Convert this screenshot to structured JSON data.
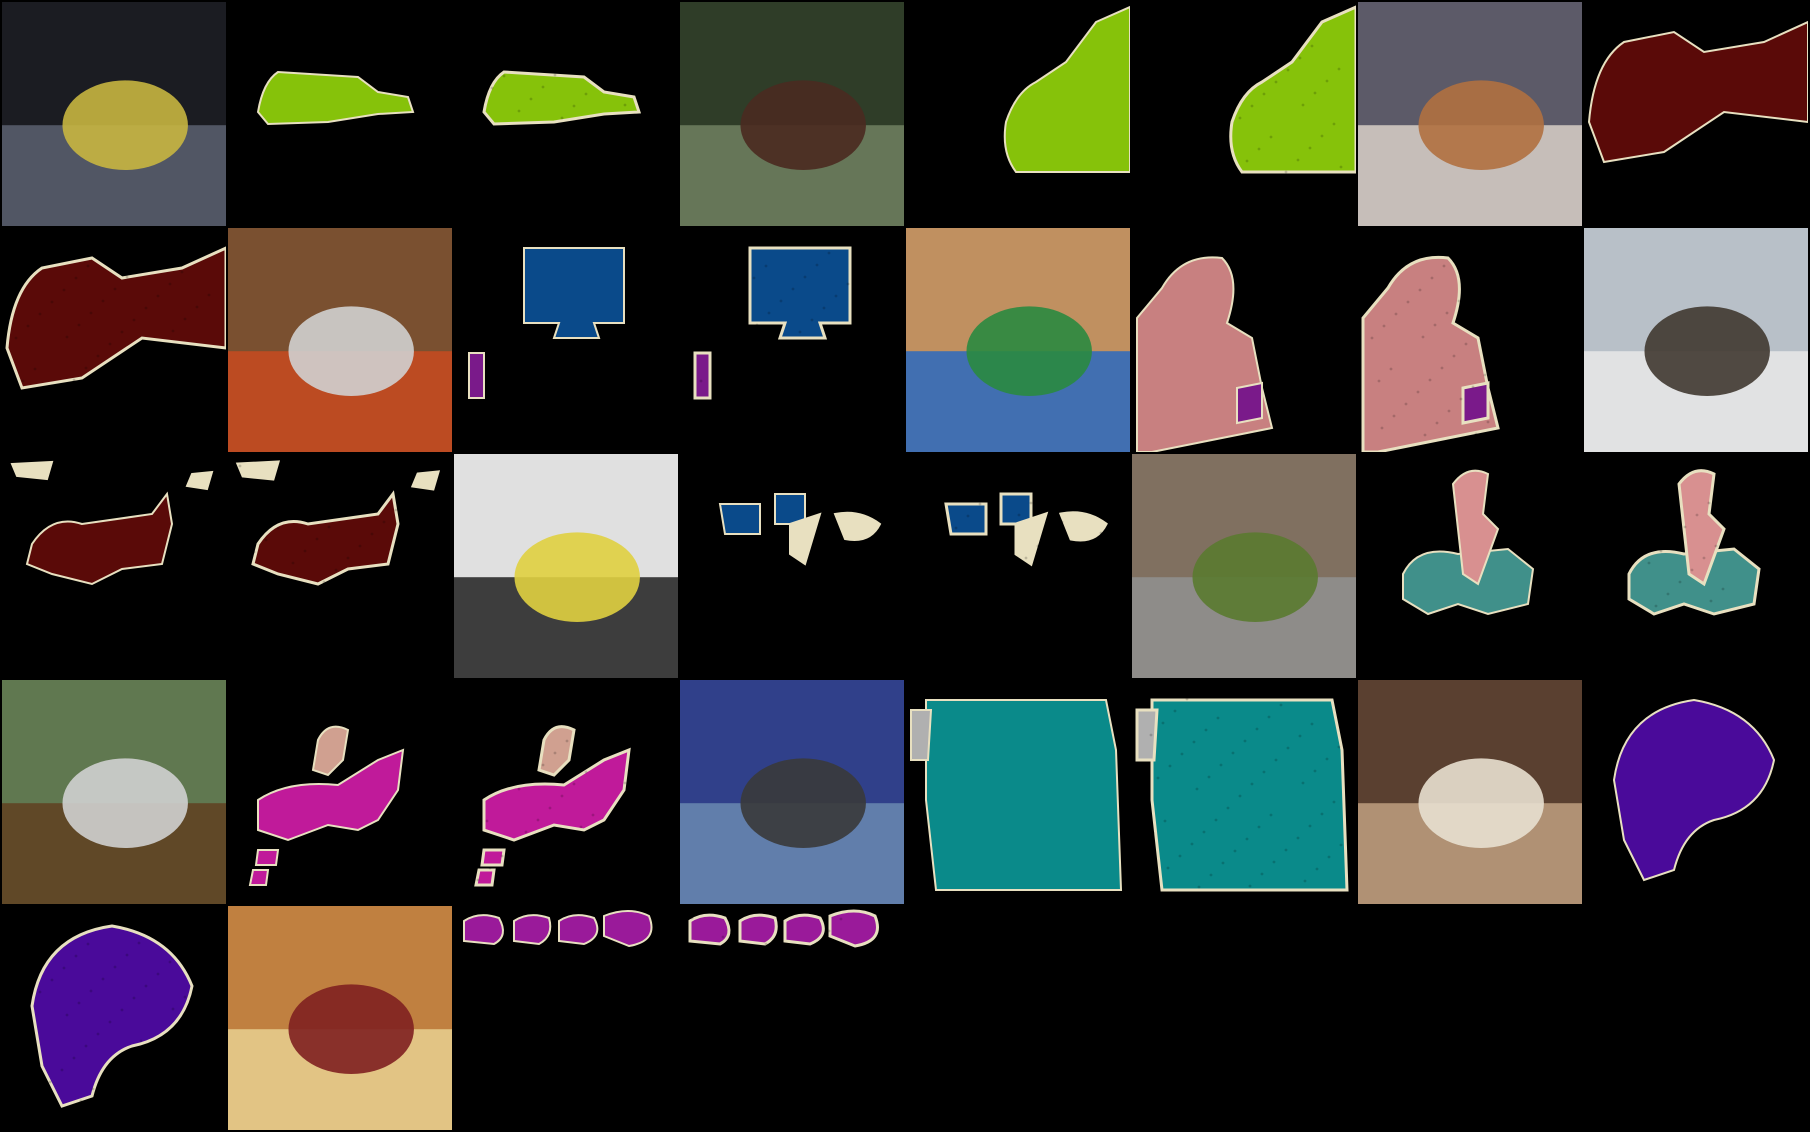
{
  "grid": {
    "description_note": "",
    "rows": [
      [
        {
          "kind": "photo",
          "subject": "train-station",
          "scene": [
            "#1b1c22",
            "#5a6070",
            "#c8b640"
          ]
        },
        {
          "kind": "mask",
          "subject": "train-gt",
          "color": "#86c20a",
          "noisy": false
        },
        {
          "kind": "mask",
          "subject": "train-pred",
          "color": "#86c20a",
          "noisy": true
        },
        {
          "kind": "photo",
          "subject": "train-tunnel",
          "scene": [
            "#2f3d28",
            "#708060",
            "#4a2a20"
          ]
        },
        {
          "kind": "mask",
          "subject": "train-gt-2",
          "color": "#86c20a",
          "noisy": false,
          "accent": "#e0a0a0"
        },
        {
          "kind": "mask",
          "subject": "train-pred-2",
          "color": "#86c20a",
          "noisy": true,
          "accent": "#e0a0a0"
        },
        {
          "kind": "photo",
          "subject": "cat-dog-bed",
          "scene": [
            "#5c5a68",
            "#d8d0c8",
            "#b07040"
          ]
        },
        {
          "kind": "mask",
          "subject": "cat-dog-gt",
          "color": "#5a0a08",
          "noisy": false,
          "accent": "#5a0ea0"
        }
      ],
      [
        {
          "kind": "mask",
          "subject": "cat-dog-pred",
          "color": "#5a0a08",
          "noisy": true,
          "accent": "#5a0ea0"
        },
        {
          "kind": "photo",
          "subject": "desk-monitor",
          "scene": [
            "#7a5030",
            "#c84a20",
            "#d0d0d0"
          ]
        },
        {
          "kind": "mask",
          "subject": "monitor-gt",
          "color": "#0a4a8a",
          "noisy": false,
          "accent": "#7a1a8a"
        },
        {
          "kind": "mask",
          "subject": "monitor-pred",
          "color": "#0a4a8a",
          "noisy": true,
          "accent": "#7a1a8a"
        },
        {
          "kind": "photo",
          "subject": "woman-bandana",
          "scene": [
            "#c09060",
            "#2a6ac0",
            "#2a8a40"
          ]
        },
        {
          "kind": "mask",
          "subject": "woman-gt",
          "color": "#c88080",
          "noisy": false,
          "accent": "#7a1a8a"
        },
        {
          "kind": "mask",
          "subject": "woman-pred",
          "color": "#c88080",
          "noisy": true,
          "accent": "#7a1a8a"
        },
        {
          "kind": "photo",
          "subject": "cat-window",
          "scene": [
            "#b8c0c8",
            "#e8e8e8",
            "#403830"
          ]
        }
      ],
      [
        {
          "kind": "mask",
          "subject": "cat-window-gt",
          "color": "#5a0a08",
          "noisy": false,
          "accent": "#e8e0c0"
        },
        {
          "kind": "mask",
          "subject": "cat-window-pred",
          "color": "#5a0a08",
          "noisy": true,
          "accent": "#e8e0c0"
        },
        {
          "kind": "photo",
          "subject": "office-desk",
          "scene": [
            "#e0e0e0",
            "#202020",
            "#e0d040"
          ]
        },
        {
          "kind": "mask",
          "subject": "office-gt",
          "color": "#0a4a8a",
          "noisy": false,
          "accent": "#e8e0c0"
        },
        {
          "kind": "mask",
          "subject": "office-pred",
          "color": "#0a4a8a",
          "noisy": true,
          "accent": "#e8e0c0"
        },
        {
          "kind": "photo",
          "subject": "motorcycle",
          "scene": [
            "#807060",
            "#909090",
            "#5a7a30"
          ]
        },
        {
          "kind": "mask",
          "subject": "moto-gt",
          "color": "#40908a",
          "noisy": false,
          "accent": "#d89090"
        },
        {
          "kind": "mask",
          "subject": "moto-pred",
          "color": "#40908a",
          "noisy": true,
          "accent": "#d89090"
        }
      ],
      [
        {
          "kind": "photo",
          "subject": "horse-jump",
          "scene": [
            "#607850",
            "#604020",
            "#d0d0d0"
          ]
        },
        {
          "kind": "mask",
          "subject": "horse-gt",
          "color": "#c01a9a",
          "noisy": false,
          "accent": "#d0a090"
        },
        {
          "kind": "mask",
          "subject": "horse-pred",
          "color": "#c01a9a",
          "noisy": true,
          "accent": "#d0a090"
        },
        {
          "kind": "photo",
          "subject": "bus-front",
          "scene": [
            "#30408a",
            "#6a8ab0",
            "#3a3a3a"
          ]
        },
        {
          "kind": "mask",
          "subject": "bus-gt",
          "color": "#0a8a8a",
          "noisy": false,
          "accent": "#b0b0b0"
        },
        {
          "kind": "mask",
          "subject": "bus-pred",
          "color": "#0a8a8a",
          "noisy": true,
          "accent": "#b0b0b0"
        },
        {
          "kind": "photo",
          "subject": "dog-sepia",
          "scene": [
            "#5a4030",
            "#c0a080",
            "#e8e0d0"
          ]
        },
        {
          "kind": "mask",
          "subject": "dog-gt",
          "color": "#4a0a9a",
          "noisy": false
        }
      ],
      [
        {
          "kind": "mask",
          "subject": "dog-pred",
          "color": "#4a0a9a",
          "noisy": true
        },
        {
          "kind": "photo",
          "subject": "fridge",
          "scene": [
            "#c08040",
            "#e8d090",
            "#802020"
          ]
        },
        {
          "kind": "mask",
          "subject": "fridge-gt",
          "color": "#9a1a9a",
          "noisy": false
        },
        {
          "kind": "mask",
          "subject": "fridge-pred",
          "color": "#9a1a9a",
          "noisy": true
        }
      ]
    ]
  }
}
